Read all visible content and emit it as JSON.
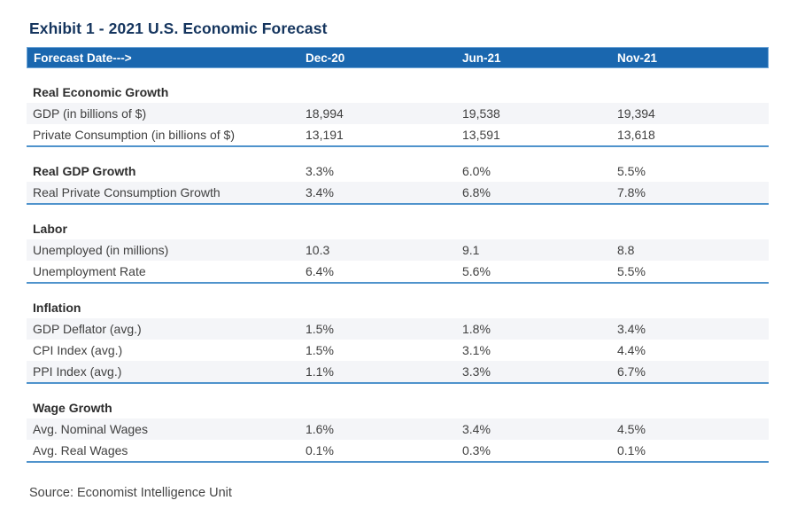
{
  "title": "Exhibit 1 - 2021 U.S. Economic Forecast",
  "source": "Source: Economist Intelligence Unit",
  "colors": {
    "header_bg": "#1a67af",
    "header_border": "#6ba3d6",
    "section_rule": "#4f93cc",
    "stripe": "#f4f5f8",
    "title_text": "#15355e",
    "body_text": "#404040"
  },
  "table": {
    "header": {
      "label": "Forecast Date--->",
      "columns": [
        "Dec-20",
        "Jun-21",
        "Nov-21"
      ]
    },
    "sections": [
      {
        "title": "Real Economic Growth",
        "title_values": null,
        "rows": [
          {
            "label": "GDP (in billions of $)",
            "values": [
              "18,994",
              "19,538",
              "19,394"
            ]
          },
          {
            "label": "Private Consumption (in billions of $)",
            "values": [
              "13,191",
              "13,591",
              "13,618"
            ]
          }
        ]
      },
      {
        "title": "Real GDP Growth",
        "title_values": [
          "3.3%",
          "6.0%",
          "5.5%"
        ],
        "rows": [
          {
            "label": "Real Private Consumption Growth",
            "values": [
              "3.4%",
              "6.8%",
              "7.8%"
            ]
          }
        ]
      },
      {
        "title": "Labor",
        "title_values": null,
        "rows": [
          {
            "label": "Unemployed (in millions)",
            "values": [
              "10.3",
              "9.1",
              "8.8"
            ]
          },
          {
            "label": "Unemployment Rate",
            "values": [
              "6.4%",
              "5.6%",
              "5.5%"
            ]
          }
        ]
      },
      {
        "title": "Inflation",
        "title_values": null,
        "rows": [
          {
            "label": "GDP Deflator (avg.)",
            "values": [
              "1.5%",
              "1.8%",
              "3.4%"
            ]
          },
          {
            "label": "CPI Index (avg.)",
            "values": [
              "1.5%",
              "3.1%",
              "4.4%"
            ]
          },
          {
            "label": "PPI Index (avg.)",
            "values": [
              "1.1%",
              "3.3%",
              "6.7%"
            ]
          }
        ]
      },
      {
        "title": "Wage Growth",
        "title_values": null,
        "rows": [
          {
            "label": "Avg. Nominal Wages",
            "values": [
              "1.6%",
              "3.4%",
              "4.5%"
            ]
          },
          {
            "label": "Avg. Real Wages",
            "values": [
              "0.1%",
              "0.3%",
              "0.1%"
            ]
          }
        ]
      }
    ]
  }
}
